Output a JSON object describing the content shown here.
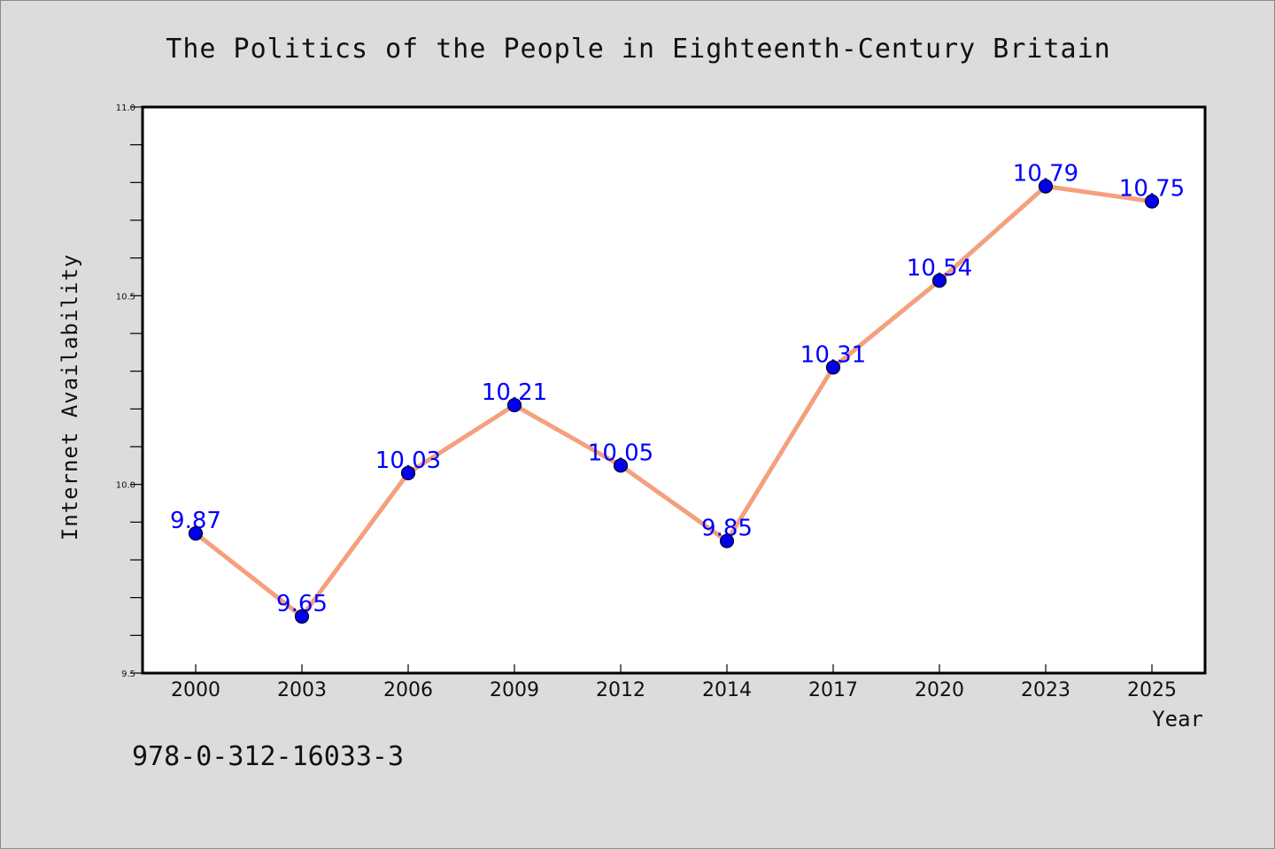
{
  "chart_data": {
    "type": "line",
    "title": "The Politics of the People in Eighteenth-Century Britain",
    "xlabel": "Year",
    "ylabel": "Internet Availability",
    "categories": [
      "2000",
      "2003",
      "2006",
      "2009",
      "2012",
      "2014",
      "2017",
      "2020",
      "2023",
      "2025"
    ],
    "series": [
      {
        "values": [
          9.87,
          9.65,
          10.03,
          10.21,
          10.05,
          9.85,
          10.31,
          10.54,
          10.79,
          10.75
        ],
        "data_labels": [
          "9.87",
          "9.65",
          "10.03",
          "10.21",
          "10.05",
          "9.85",
          "10.31",
          "10.54",
          "10.79",
          "10.75"
        ],
        "line_color": "#f4a07f",
        "marker_color": "#0000ee"
      }
    ],
    "ylim": [
      9.5,
      11.0
    ],
    "y_ticks": [
      "9.5",
      "10.0",
      "10.5",
      "11.0"
    ],
    "y_minor_step": 0.1,
    "grid": false,
    "legend": "none",
    "annotation": "978-0-312-16033-3",
    "label_color": "#0000ff"
  }
}
